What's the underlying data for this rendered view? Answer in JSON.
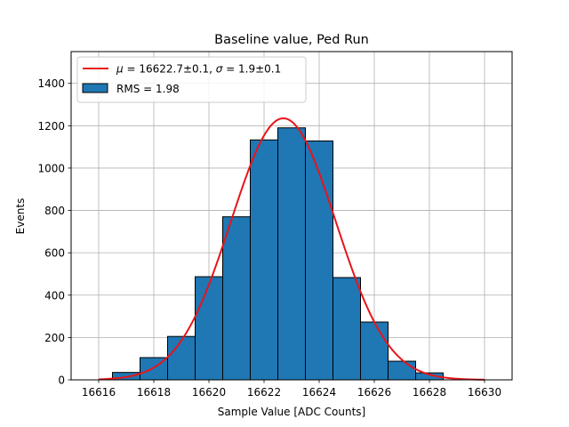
{
  "chart_data": {
    "type": "bar",
    "title": "Baseline value, Ped Run",
    "xlabel": "Sample Value [ADC Counts]",
    "ylabel": "Events",
    "xlim": [
      16615,
      16631
    ],
    "ylim": [
      0,
      1550
    ],
    "xticks": [
      16616,
      16618,
      16620,
      16622,
      16624,
      16626,
      16628,
      16630
    ],
    "yticks": [
      0,
      200,
      400,
      600,
      800,
      1000,
      1200,
      1400
    ],
    "grid": true,
    "legend_position": "top-left",
    "histogram": {
      "name": "RMS = 1.98",
      "color": "#1f77b4",
      "edge_color": "#000000",
      "bin_edges": [
        16616.5,
        16617.5,
        16618.5,
        16619.5,
        16620.5,
        16621.5,
        16622.5,
        16623.5,
        16624.5,
        16625.5,
        16626.5,
        16627.5,
        16628.5
      ],
      "values": [
        35,
        105,
        205,
        487,
        770,
        1133,
        1190,
        1128,
        483,
        273,
        88,
        33
      ]
    },
    "fit": {
      "name_parts": [
        "μ",
        " = 16622.7±0.1, ",
        "σ",
        " = 1.9±0.1"
      ],
      "color": "#e8141a",
      "model": "gaussian",
      "mu": 16622.7,
      "sigma": 1.9,
      "amplitude": 1235,
      "x_range": [
        16616,
        16630
      ]
    }
  }
}
